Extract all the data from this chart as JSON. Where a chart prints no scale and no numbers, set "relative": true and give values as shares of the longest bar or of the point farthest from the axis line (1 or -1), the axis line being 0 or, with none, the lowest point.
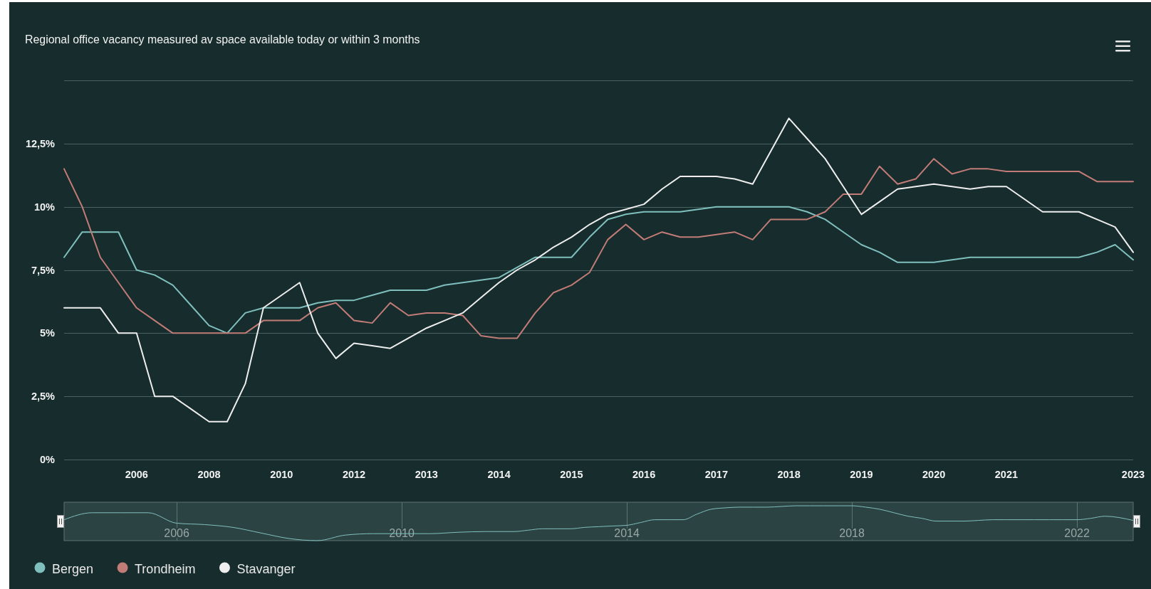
{
  "chart_data": [
    {
      "type": "line",
      "title": "Regional office vacancy measured av space available today or within 3 months",
      "categories": [
        null,
        null,
        null,
        null,
        "2006",
        null,
        null,
        null,
        "2008",
        null,
        null,
        null,
        "2010",
        null,
        null,
        null,
        "2012",
        null,
        null,
        null,
        "2013",
        null,
        null,
        null,
        "2014",
        null,
        null,
        null,
        "2015",
        null,
        null,
        null,
        "2016",
        null,
        null,
        null,
        "2017",
        null,
        null,
        null,
        "2018",
        null,
        null,
        null,
        "2019",
        null,
        null,
        null,
        "2020",
        null,
        null,
        null,
        "2021",
        null,
        null,
        null,
        null,
        null,
        null,
        "2023"
      ],
      "series": [
        {
          "name": "Bergen",
          "color": "#7fbfbd",
          "values": [
            8.0,
            9.0,
            9.0,
            9.0,
            7.5,
            7.3,
            6.9,
            6.1,
            5.3,
            5.0,
            5.8,
            6.0,
            6.0,
            6.0,
            6.2,
            6.3,
            6.3,
            6.5,
            6.7,
            6.7,
            6.7,
            6.9,
            7.0,
            7.1,
            7.2,
            7.6,
            8.0,
            8.0,
            8.0,
            8.8,
            9.5,
            9.7,
            9.8,
            9.8,
            9.8,
            9.9,
            10.0,
            10.0,
            10.0,
            10.0,
            10.0,
            9.8,
            9.5,
            9.0,
            8.5,
            8.2,
            7.8,
            7.8,
            7.8,
            7.9,
            8.0,
            8.0,
            8.0,
            8.0,
            8.0,
            8.0,
            8.0,
            8.2,
            8.5,
            7.9
          ]
        },
        {
          "name": "Trondheim",
          "color": "#c27c77",
          "values": [
            11.5,
            10.0,
            8.0,
            7.0,
            6.0,
            5.5,
            5.0,
            5.0,
            5.0,
            5.0,
            5.0,
            5.5,
            5.5,
            5.5,
            6.0,
            6.2,
            5.5,
            5.4,
            6.2,
            5.7,
            5.8,
            5.8,
            5.7,
            4.9,
            4.8,
            4.8,
            5.8,
            6.6,
            6.9,
            7.4,
            8.7,
            9.3,
            8.7,
            9.0,
            8.8,
            8.8,
            8.9,
            9.0,
            8.7,
            9.5,
            9.5,
            9.5,
            9.8,
            10.5,
            10.5,
            11.6,
            10.9,
            11.1,
            11.9,
            11.3,
            11.5,
            11.5,
            11.4,
            11.4,
            11.4,
            11.4,
            11.4,
            11.0,
            11.0,
            11.0
          ]
        },
        {
          "name": "Stavanger",
          "color": "#eeeeee",
          "values": [
            6.0,
            6.0,
            6.0,
            5.0,
            5.0,
            2.5,
            2.5,
            2.0,
            1.5,
            1.5,
            3.0,
            6.0,
            6.5,
            7.0,
            5.0,
            4.0,
            4.6,
            4.5,
            4.4,
            4.8,
            5.2,
            5.5,
            5.8,
            6.4,
            7.0,
            7.5,
            7.9,
            8.4,
            8.8,
            9.3,
            9.7,
            9.9,
            10.1,
            10.7,
            11.2,
            11.2,
            11.2,
            11.1,
            10.9,
            12.2,
            13.5,
            12.7,
            11.9,
            10.8,
            9.7,
            10.2,
            10.7,
            10.8,
            10.9,
            10.8,
            10.7,
            10.8,
            10.8,
            10.3,
            9.8,
            9.8,
            9.8,
            9.5,
            9.2,
            8.2
          ]
        }
      ],
      "ylim": [
        0,
        15
      ],
      "yticks": [
        {
          "value": 0,
          "label": "0%"
        },
        {
          "value": 2.5,
          "label": "2,5%"
        },
        {
          "value": 5,
          "label": "5%"
        },
        {
          "value": 7.5,
          "label": "7,5%"
        },
        {
          "value": 10,
          "label": "10%"
        },
        {
          "value": 12.5,
          "label": "12,5%"
        },
        {
          "value": 15,
          "label": null
        }
      ],
      "grid": "y",
      "legend": "bottom left"
    },
    {
      "type": "line",
      "relative": true,
      "x": [
        "2004-01",
        "2004-07",
        "2005-01",
        "2005-07",
        "2006-01",
        "2006-07",
        "2007-01",
        "2007-07",
        "2008-01",
        "2008-07",
        "2009-01",
        "2009-07",
        "2010-01",
        "2010-07",
        "2011-01",
        "2011-07",
        "2012-01",
        "2012-04",
        "2012-07",
        "2012-10",
        "2013-01",
        "2013-04",
        "2013-07",
        "2013-10",
        "2014-01",
        "2014-04",
        "2014-07",
        "2014-10",
        "2015-01",
        "2015-04",
        "2015-07",
        "2015-10",
        "2016-01",
        "2016-04",
        "2016-07",
        "2016-10",
        "2017-01",
        "2017-04",
        "2017-07",
        "2017-10",
        "2018-01",
        "2018-04",
        "2018-07",
        "2018-10",
        "2019-01",
        "2019-04",
        "2019-07",
        "2019-10",
        "2020-01",
        "2020-04",
        "2020-07",
        "2020-10",
        "2021-01",
        "2021-04",
        "2021-07",
        "2021-10",
        "2022-01",
        "2022-04",
        "2022-07",
        "2023-01"
      ],
      "values": [
        0.6,
        0.8,
        0.8,
        0.8,
        0.5,
        0.46,
        0.38,
        0.22,
        0.06,
        0,
        0.16,
        0.2,
        0.2,
        0.2,
        0.24,
        0.26,
        0.26,
        0.3,
        0.34,
        0.34,
        0.34,
        0.38,
        0.4,
        0.42,
        0.44,
        0.52,
        0.6,
        0.6,
        0.6,
        0.76,
        0.9,
        0.94,
        0.96,
        0.96,
        0.96,
        0.98,
        1,
        1,
        1,
        1,
        1,
        0.96,
        0.9,
        0.8,
        0.7,
        0.64,
        0.56,
        0.56,
        0.56,
        0.58,
        0.6,
        0.6,
        0.6,
        0.6,
        0.6,
        0.6,
        0.6,
        0.64,
        0.7,
        0.58
      ],
      "color": "#7fbfbd",
      "xlim": [
        "2004-01",
        "2023-01"
      ],
      "xticks": [
        {
          "value": "2006",
          "label": "2006"
        },
        {
          "value": "2010",
          "label": "2010"
        },
        {
          "value": "2014",
          "label": "2014"
        },
        {
          "value": "2018",
          "label": "2018"
        },
        {
          "value": "2022",
          "label": "2022"
        }
      ],
      "grid": "x",
      "tick_labels": "x"
    }
  ]
}
